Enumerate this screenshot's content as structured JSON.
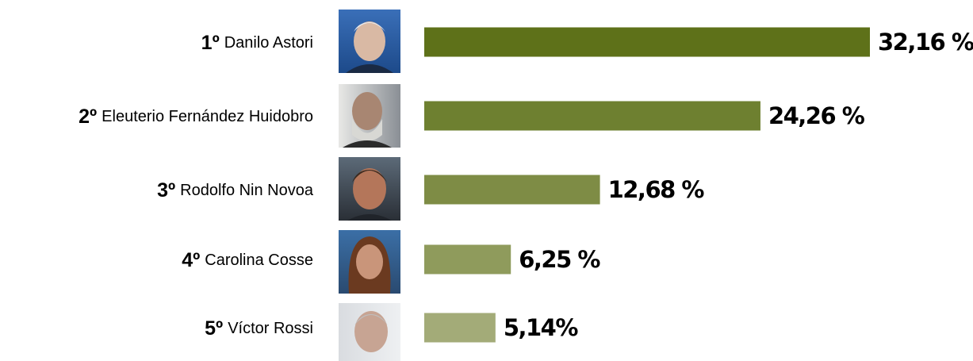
{
  "chart_data": {
    "type": "bar",
    "ranks": [
      "1º",
      "2º",
      "3º",
      "4º",
      "5º"
    ],
    "categories": [
      "Danilo Astori",
      "Eleuterio Fernández Huidobro",
      "Rodolfo Nin Novoa",
      "Carolina Cosse",
      "Víctor Rossi"
    ],
    "values": [
      32.16,
      24.26,
      12.68,
      6.25,
      5.14
    ],
    "value_labels": [
      "32,16 %",
      "24,26 %",
      "12,68 %",
      "6,25 %",
      "5,14%"
    ],
    "colors": [
      "#5e7119",
      "#6e8030",
      "#7e8c45",
      "#8f9b5c",
      "#a3ab78"
    ]
  }
}
